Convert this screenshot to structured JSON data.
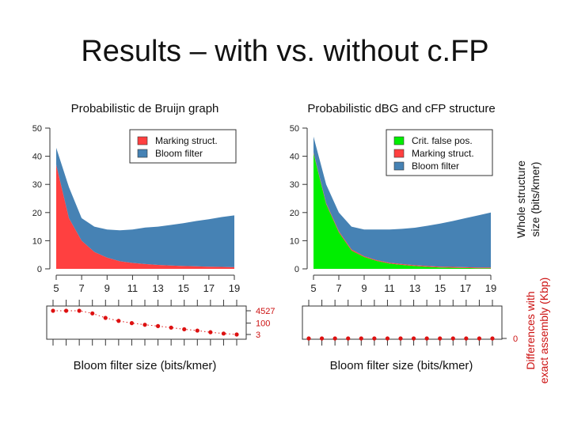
{
  "slide": {
    "title": "Results – with vs. without c.FP"
  },
  "colors": {
    "bloom": "#4682b4",
    "marking": "#ff4040",
    "cfp": "#00ee00",
    "dots": "#dd1111",
    "axis": "#333333"
  },
  "chart_data": [
    {
      "type": "area",
      "title": "Probabilistic de Bruijn graph",
      "xlabel": "",
      "ylabel": "",
      "x": [
        5,
        6,
        7,
        8,
        9,
        10,
        11,
        12,
        13,
        14,
        15,
        16,
        17,
        18,
        19
      ],
      "xticks": [
        5,
        7,
        9,
        11,
        13,
        15,
        17,
        19
      ],
      "yticks": [
        0,
        10,
        20,
        30,
        40,
        50
      ],
      "ylim": [
        0,
        50
      ],
      "stacked": true,
      "legend": {
        "placement": "top-right",
        "entries": [
          "Marking struct.",
          "Bloom filter"
        ]
      },
      "series": [
        {
          "name": "Marking struct.",
          "color": "#ff4040",
          "values": [
            37,
            18,
            10,
            6,
            4,
            2.7,
            2.1,
            1.7,
            1.4,
            1.2,
            1.0,
            0.9,
            0.8,
            0.7,
            0.6
          ]
        },
        {
          "name": "Bloom filter",
          "color": "#4682b4",
          "values": [
            6,
            11,
            8,
            9,
            10,
            11,
            11.9,
            13,
            13.6,
            14.4,
            15.2,
            16.1,
            16.8,
            17.7,
            18.4
          ]
        }
      ]
    },
    {
      "type": "area",
      "title": "Probabilistic dBG and cFP structure",
      "xlabel": "",
      "ylabel": "Whole structure size (bits/kmer)",
      "x": [
        5,
        6,
        7,
        8,
        9,
        10,
        11,
        12,
        13,
        14,
        15,
        16,
        17,
        18,
        19
      ],
      "xticks": [
        5,
        7,
        9,
        11,
        13,
        15,
        17,
        19
      ],
      "yticks": [
        0,
        10,
        20,
        30,
        40,
        50
      ],
      "ylim": [
        0,
        50
      ],
      "stacked": true,
      "legend": {
        "placement": "top-right",
        "entries": [
          "Crit. false pos.",
          "Marking struct.",
          "Bloom filter"
        ]
      },
      "series": [
        {
          "name": "Crit. false pos.",
          "color": "#00ee00",
          "values": [
            41,
            23,
            13,
            6.5,
            4.2,
            2.8,
            1.9,
            1.4,
            1.0,
            0.7,
            0.5,
            0.4,
            0.3,
            0.2,
            0.2
          ]
        },
        {
          "name": "Marking struct.",
          "color": "#ff4040",
          "values": [
            0.4,
            0.4,
            0.4,
            0.4,
            0.3,
            0.3,
            0.3,
            0.3,
            0.3,
            0.3,
            0.3,
            0.3,
            0.3,
            0.3,
            0.3
          ]
        },
        {
          "name": "Bloom filter",
          "color": "#4682b4",
          "values": [
            5.6,
            6.6,
            6.6,
            8.1,
            9.5,
            10.9,
            11.8,
            12.5,
            13.3,
            14.3,
            15.3,
            16.3,
            17.4,
            18.5,
            19.5
          ]
        }
      ]
    },
    {
      "type": "scatter",
      "title": "",
      "xlabel": "Bloom filter size (bits/kmer)",
      "ylabel": "",
      "x": [
        5,
        6,
        7,
        8,
        9,
        10,
        11,
        12,
        13,
        14,
        15,
        16,
        17,
        18,
        19
      ],
      "yticks": [
        "4527",
        "100",
        "3"
      ],
      "values": [
        4527,
        4527,
        4527,
        2000,
        500,
        200,
        100,
        60,
        40,
        25,
        15,
        10,
        6,
        4,
        3
      ],
      "scale": "log",
      "ylim": [
        3,
        4527
      ]
    },
    {
      "type": "scatter",
      "title": "",
      "xlabel": "Bloom filter size (bits/kmer)",
      "ylabel": "Differences with exact assembly (Kbp)",
      "x": [
        5,
        6,
        7,
        8,
        9,
        10,
        11,
        12,
        13,
        14,
        15,
        16,
        17,
        18,
        19
      ],
      "yticks": [
        "0"
      ],
      "values": [
        0,
        0,
        0,
        0,
        0,
        0,
        0,
        0,
        0,
        0,
        0,
        0,
        0,
        0,
        0
      ]
    }
  ],
  "y_axis_title_right": {
    "line1": "Whole structure",
    "line2": "size (bits/kmer)"
  },
  "y_axis_title_bottom": {
    "line1": "Differences with",
    "line2": "exact assembly (Kbp)"
  }
}
